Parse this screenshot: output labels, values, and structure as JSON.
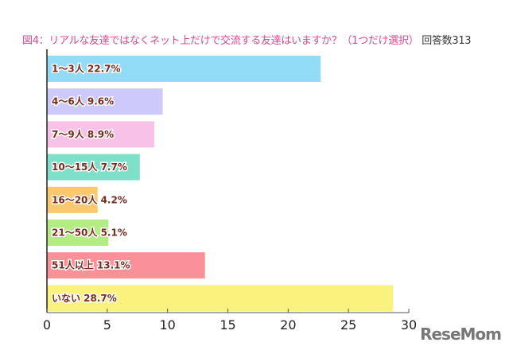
{
  "chart_data": {
    "type": "bar",
    "orientation": "horizontal",
    "title": "図4：リアルな友達ではなくネット上だけで交流する友達はいますか？（1つだけ選択）",
    "respondents_label": "回答数313",
    "categories": [
      "1〜3人",
      "4〜6人",
      "7〜9人",
      "10〜15人",
      "16〜20人",
      "21〜50人",
      "51人以上",
      "いない"
    ],
    "values": [
      22.7,
      9.6,
      8.9,
      7.7,
      4.2,
      5.1,
      13.1,
      28.7
    ],
    "value_suffix": "%",
    "colors": [
      "#92dcf8",
      "#cdc9fa",
      "#f8c2e8",
      "#7fe0c9",
      "#fbc86e",
      "#b2ec82",
      "#fa9098",
      "#f9f27d"
    ],
    "xlim": [
      0,
      30
    ],
    "xticks": [
      0,
      5,
      10,
      15,
      20,
      25,
      30
    ],
    "grid": false,
    "legend": "none"
  },
  "watermark": "ReseMom"
}
